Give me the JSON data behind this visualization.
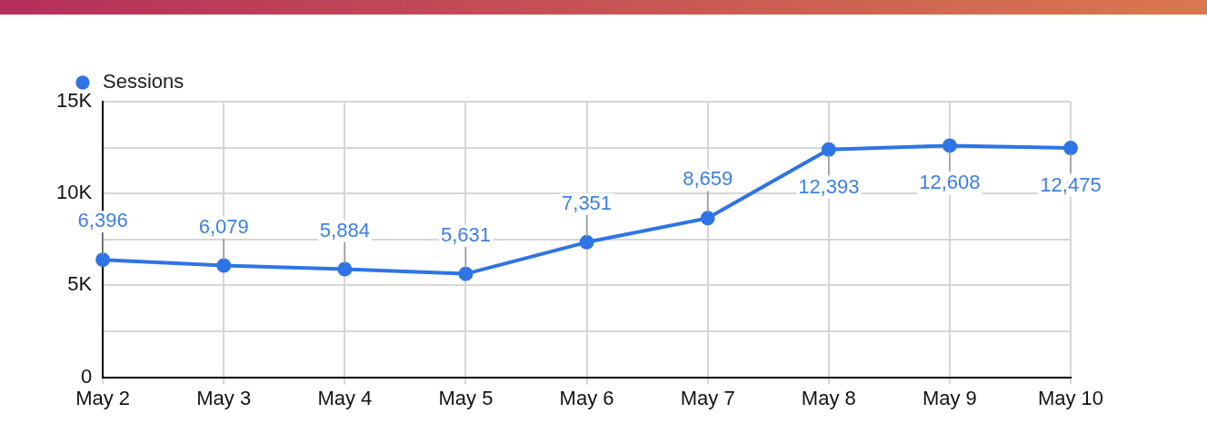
{
  "chart_data": {
    "type": "line",
    "categories": [
      "May 2",
      "May 3",
      "May 4",
      "May 5",
      "May 6",
      "May 7",
      "May 8",
      "May 9",
      "May 10"
    ],
    "series": [
      {
        "name": "Sessions",
        "color": "#2f74e4",
        "values": [
          6396,
          6079,
          5884,
          5631,
          7351,
          8659,
          12393,
          12608,
          12475
        ],
        "value_labels": [
          "6,396",
          "6,079",
          "5,884",
          "5,631",
          "7,351",
          "8,659",
          "12,393",
          "12,608",
          "12,475"
        ]
      }
    ],
    "ylim": [
      0,
      15000
    ],
    "yticks": [
      0,
      {
        "value": 2500,
        "label": null
      },
      {
        "value": 5000,
        "label": "5K"
      },
      {
        "value": 7500,
        "label": null
      },
      {
        "value": 10000,
        "label": "10K"
      },
      {
        "value": 12500,
        "label": null
      },
      {
        "value": 15000,
        "label": "15K"
      }
    ],
    "grid": true,
    "legend": "top left",
    "marker": "circle",
    "line_style": "solid"
  }
}
